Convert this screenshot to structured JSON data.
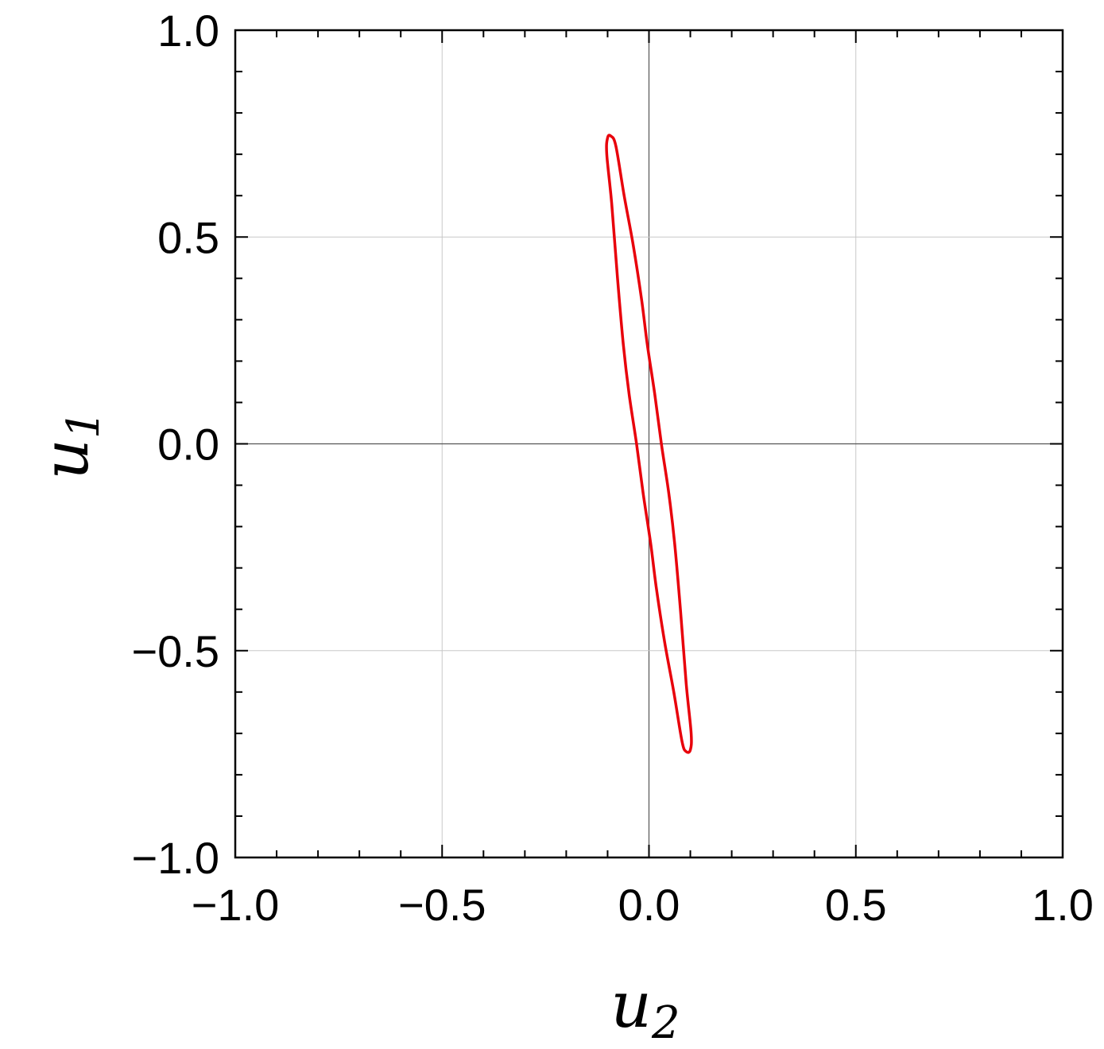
{
  "chart_data": {
    "type": "line",
    "xlabel": {
      "base": "u",
      "sub": "2"
    },
    "ylabel": {
      "base": "u",
      "sub": "1"
    },
    "xlim": [
      -1.0,
      1.0
    ],
    "ylim": [
      -1.0,
      1.0
    ],
    "grid": true,
    "x_ticks": [
      -1.0,
      -0.5,
      0.0,
      0.5,
      1.0
    ],
    "y_ticks": [
      -1.0,
      -0.5,
      0.0,
      0.5,
      1.0
    ],
    "x_tick_labels": [
      "−1.0",
      "−0.5",
      "0.0",
      "0.5",
      "1.0"
    ],
    "y_tick_labels": [
      "−1.0",
      "−0.5",
      "0.0",
      "0.5",
      "1.0"
    ],
    "minor_tick_step": 0.1,
    "series": [
      {
        "color": "#e8000b",
        "closed": true,
        "points": [
          [
            -0.092,
            0.744
          ],
          [
            -0.08,
            0.72
          ],
          [
            -0.06,
            0.6
          ],
          [
            -0.038,
            0.48
          ],
          [
            -0.018,
            0.35
          ],
          [
            -0.004,
            0.24
          ],
          [
            0.014,
            0.12
          ],
          [
            0.03,
            0.0
          ],
          [
            0.048,
            -0.12
          ],
          [
            0.062,
            -0.24
          ],
          [
            0.076,
            -0.4
          ],
          [
            0.09,
            -0.58
          ],
          [
            0.102,
            -0.7
          ],
          [
            0.1,
            -0.74
          ],
          [
            0.09,
            -0.744
          ],
          [
            0.08,
            -0.72
          ],
          [
            0.06,
            -0.6
          ],
          [
            0.038,
            -0.48
          ],
          [
            0.018,
            -0.35
          ],
          [
            0.004,
            -0.24
          ],
          [
            -0.014,
            -0.12
          ],
          [
            -0.03,
            0.0
          ],
          [
            -0.048,
            0.12
          ],
          [
            -0.062,
            0.24
          ],
          [
            -0.076,
            0.4
          ],
          [
            -0.09,
            0.58
          ],
          [
            -0.102,
            0.7
          ],
          [
            -0.1,
            0.74
          ]
        ]
      }
    ]
  }
}
